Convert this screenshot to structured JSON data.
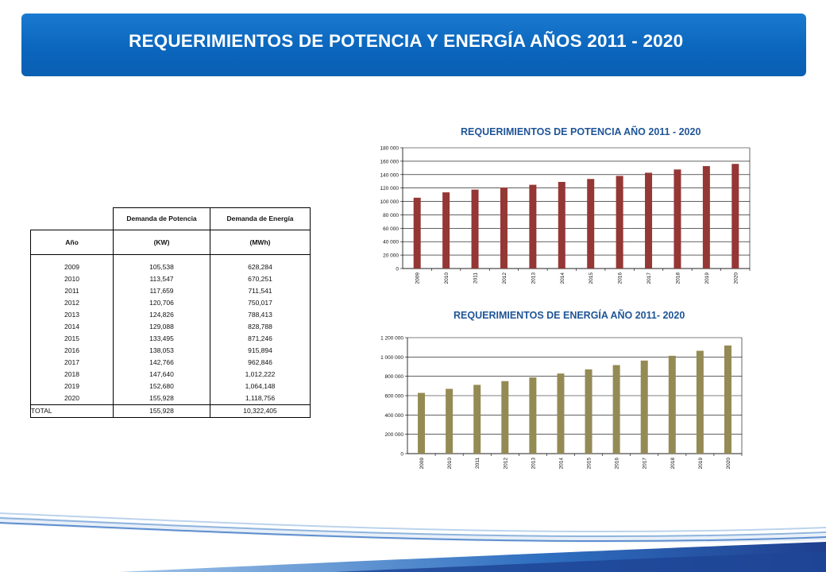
{
  "header": {
    "title": "REQUERIMIENTOS DE POTENCIA Y ENERGÍA AÑOS 2011 - 2020"
  },
  "table": {
    "group_headers": [
      "",
      "Demanda de Potencia",
      "Demanda de Energía"
    ],
    "unit_headers": [
      "Año",
      "(KW)",
      "(MWh)"
    ],
    "rows": [
      [
        "2009",
        "105,538",
        "628,284"
      ],
      [
        "2010",
        "113,547",
        "670,251"
      ],
      [
        "2011",
        "117,659",
        "711,541"
      ],
      [
        "2012",
        "120,706",
        "750,017"
      ],
      [
        "2013",
        "124,826",
        "788,413"
      ],
      [
        "2014",
        "129,088",
        "828,788"
      ],
      [
        "2015",
        "133,495",
        "871,246"
      ],
      [
        "2016",
        "138,053",
        "915,894"
      ],
      [
        "2017",
        "142,766",
        "962,846"
      ],
      [
        "2018",
        "147,640",
        "1,012,222"
      ],
      [
        "2019",
        "152,680",
        "1,064,148"
      ],
      [
        "2020",
        "155,928",
        "1,118,756"
      ]
    ],
    "total": [
      "TOTAL",
      "155,928",
      "10,322,405"
    ]
  },
  "colors": {
    "banner": "#0b66bd",
    "power_bar": "#953735",
    "energy_bar": "#948a54",
    "chart_title": "#1f5597"
  },
  "chart_data": [
    {
      "type": "bar",
      "title": "REQUERIMIENTOS DE POTENCIA AÑO 2011 - 2020",
      "categories": [
        "2009",
        "2010",
        "2011",
        "2012",
        "2013",
        "2014",
        "2015",
        "2016",
        "2017",
        "2018",
        "2019",
        "2020"
      ],
      "values": [
        105538,
        113547,
        117659,
        120706,
        124826,
        129088,
        133495,
        138053,
        142766,
        147640,
        152680,
        155928
      ],
      "ylim": [
        0,
        180000
      ],
      "yticks": [
        0,
        20000,
        40000,
        60000,
        80000,
        100000,
        120000,
        140000,
        160000,
        180000
      ],
      "ytick_labels": [
        "0",
        "20 000",
        "40 000",
        "60 000",
        "80 000",
        "100 000",
        "120 000",
        "140 000",
        "160 000",
        "180 000"
      ],
      "grid": true
    },
    {
      "type": "bar",
      "title": "REQUERIMIENTOS DE ENERGÍA AÑO 2011- 2020",
      "categories": [
        "2009",
        "2010",
        "2011",
        "2012",
        "2013",
        "2014",
        "2015",
        "2016",
        "2017",
        "2018",
        "2019",
        "2020"
      ],
      "values": [
        628284,
        670251,
        711541,
        750017,
        788413,
        828788,
        871246,
        915894,
        962846,
        1012222,
        1064148,
        1118756
      ],
      "ylim": [
        0,
        1200000
      ],
      "yticks": [
        0,
        200000,
        400000,
        600000,
        800000,
        1000000,
        1200000
      ],
      "ytick_labels": [
        "0",
        "200 000",
        "400 000",
        "600 000",
        "800 000",
        "1 000 000",
        "1 200 000"
      ],
      "grid": true
    }
  ]
}
